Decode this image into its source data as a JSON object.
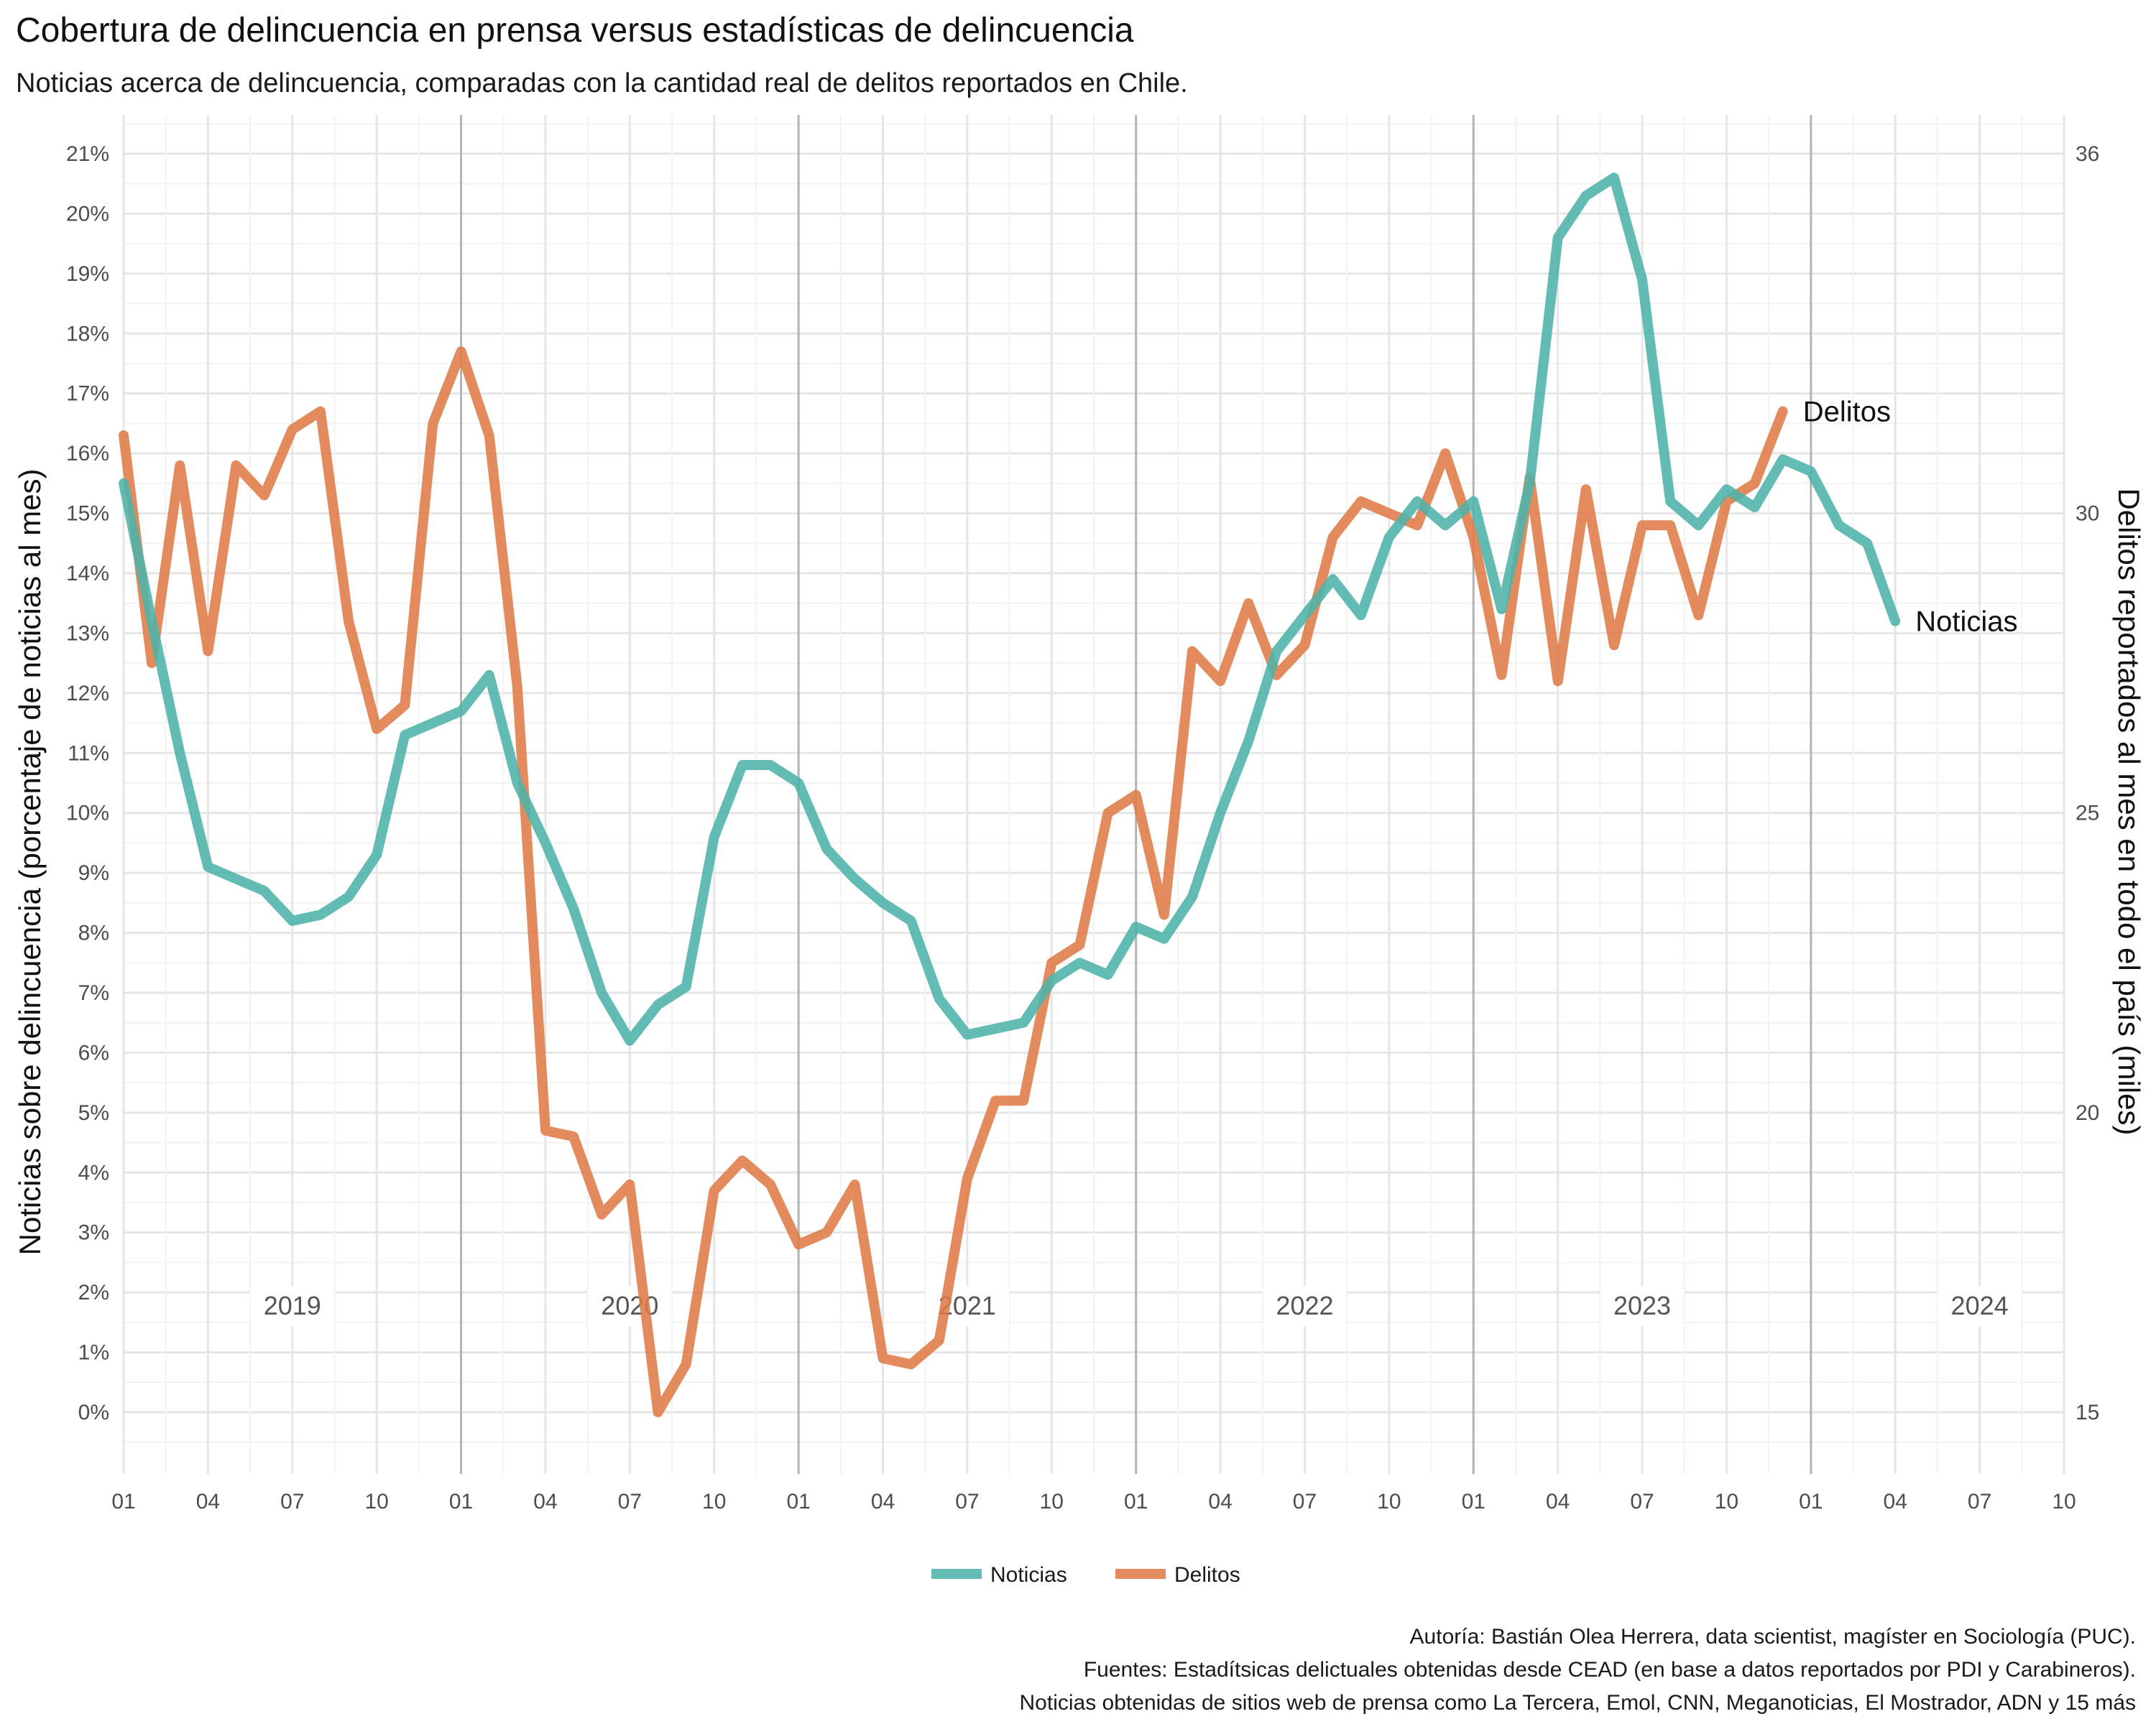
{
  "chart_data": {
    "type": "line",
    "title": "Cobertura de delincuencia en prensa versus estadísticas de delincuencia",
    "subtitle": "Noticias acerca de delincuencia, comparadas con la cantidad real de delitos reportados en Chile.",
    "ylabel_left": "Noticias sobre delincuencia (porcentaje de noticias al mes)",
    "ylabel_right": "Delitos reportados al mes en todo el país (miles)",
    "ylim_left": [
      0,
      21
    ],
    "ylim_right": [
      15,
      36
    ],
    "grid": true,
    "legend_position": "bottom",
    "y_ticks_left": [
      "0%",
      "1%",
      "2%",
      "3%",
      "4%",
      "5%",
      "6%",
      "7%",
      "8%",
      "9%",
      "10%",
      "11%",
      "12%",
      "13%",
      "14%",
      "15%",
      "16%",
      "17%",
      "18%",
      "19%",
      "20%",
      "21%"
    ],
    "y_ticks_right": [
      "15",
      "20",
      "25",
      "30",
      "36"
    ],
    "x_ticks": [
      "01",
      "04",
      "07",
      "10",
      "01",
      "04",
      "07",
      "10",
      "01",
      "04",
      "07",
      "10",
      "01",
      "04",
      "07",
      "10",
      "01",
      "04",
      "07",
      "10",
      "01",
      "04",
      "07",
      "10"
    ],
    "year_labels": [
      "2019",
      "2020",
      "2021",
      "2022",
      "2023",
      "2024"
    ],
    "series": [
      {
        "name": "Noticias",
        "axis": "left",
        "color": "#4db3aa",
        "start": "2019-01",
        "values": [
          15.5,
          13.2,
          11.0,
          9.1,
          8.9,
          8.7,
          8.2,
          8.3,
          8.6,
          9.3,
          11.3,
          11.5,
          11.7,
          12.3,
          10.5,
          9.5,
          8.4,
          7.0,
          6.2,
          6.8,
          7.1,
          9.6,
          10.8,
          10.8,
          10.5,
          9.4,
          8.9,
          8.5,
          8.2,
          6.9,
          6.3,
          6.4,
          6.5,
          7.2,
          7.5,
          7.3,
          8.1,
          7.9,
          8.6,
          10.0,
          11.2,
          12.7,
          13.3,
          13.9,
          13.3,
          14.6,
          15.2,
          14.8,
          15.2,
          13.4,
          15.5,
          19.6,
          20.3,
          20.6,
          18.9,
          15.2,
          14.8,
          15.4,
          15.1,
          15.9,
          15.7,
          14.8,
          14.5,
          13.2
        ]
      },
      {
        "name": "Delitos",
        "axis": "right",
        "color": "#e07b48",
        "start": "2019-01",
        "values": [
          31.3,
          27.5,
          30.8,
          27.7,
          30.8,
          30.3,
          31.4,
          31.7,
          28.2,
          26.4,
          26.8,
          31.5,
          32.7,
          31.3,
          27.1,
          19.7,
          19.6,
          18.3,
          18.8,
          15.0,
          15.8,
          18.7,
          19.2,
          18.8,
          17.8,
          18.0,
          18.8,
          15.9,
          15.8,
          16.2,
          18.9,
          20.2,
          20.2,
          22.5,
          22.8,
          25.0,
          25.3,
          23.3,
          27.7,
          27.2,
          28.5,
          27.3,
          27.8,
          29.6,
          30.2,
          30.0,
          29.8,
          31.0,
          29.6,
          27.3,
          30.6,
          27.2,
          30.4,
          27.8,
          29.8,
          29.8,
          28.3,
          30.2,
          30.5,
          31.7
        ]
      }
    ]
  },
  "legend": [
    {
      "label": "Noticias",
      "color": "#4db3aa"
    },
    {
      "label": "Delitos",
      "color": "#e07b48"
    }
  ],
  "caption": {
    "line1": "Autoría: Bastián Olea Herrera, data scientist, magíster en Sociología (PUC).",
    "line2": "Fuentes: Estadítsicas delictuales obtenidas desde CEAD (en base a datos reportados por PDI y Carabineros).",
    "line3": "Noticias obtenidas de sitios web de prensa como La Tercera, Emol, CNN, Meganoticias, El Mostrador, ADN y 15 más"
  }
}
